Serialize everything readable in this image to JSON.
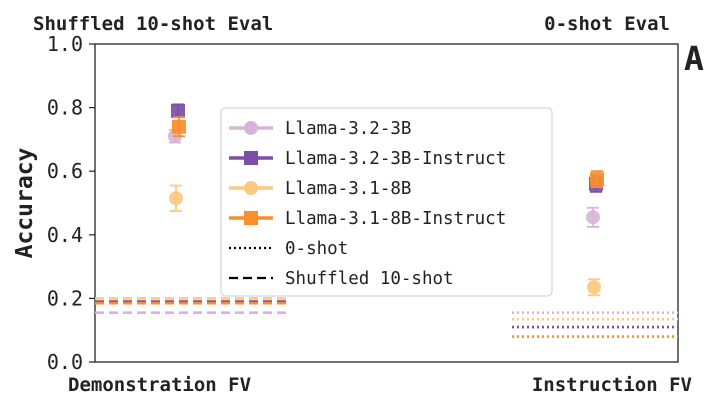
{
  "chart_data": {
    "type": "scatter",
    "panel_label": "A",
    "ylabel": "Accuracy",
    "ylim": [
      0.0,
      1.0
    ],
    "yticks": [
      "0.0",
      "0.2",
      "0.4",
      "0.6",
      "0.8",
      "1.0"
    ],
    "categories": [
      "Demonstration FV",
      "Instruction FV"
    ],
    "column_titles": [
      "Shuffled 10-shot Eval",
      "0-shot Eval"
    ],
    "series": [
      {
        "name": "Llama-3.2-3B",
        "color": "#d7b5d8",
        "marker": "circle",
        "values": [
          0.71,
          0.455
        ],
        "err": [
          0.02,
          0.03
        ],
        "baseline": [
          0.155,
          0.155
        ]
      },
      {
        "name": "Llama-3.2-3B-Instruct",
        "color": "#7b4fa6",
        "marker": "square",
        "values": [
          0.79,
          0.56
        ],
        "err": [
          0.02,
          0.025
        ],
        "baseline": [
          0.19,
          0.11
        ]
      },
      {
        "name": "Llama-3.1-8B",
        "color": "#fdc87f",
        "marker": "circle",
        "values": [
          0.515,
          0.235
        ],
        "err": [
          0.04,
          0.025
        ],
        "baseline": [
          0.2,
          0.135
        ]
      },
      {
        "name": "Llama-3.1-8B-Instruct",
        "color": "#f98e2b",
        "marker": "square",
        "values": [
          0.74,
          0.575
        ],
        "err": [
          0.03,
          0.025
        ],
        "baseline": [
          0.185,
          0.08
        ]
      }
    ],
    "baseline_style": [
      "dashed",
      "dotted"
    ],
    "legend": [
      {
        "label": "Llama-3.2-3B",
        "color": "#d7b5d8",
        "marker": "circle",
        "line": "solid"
      },
      {
        "label": "Llama-3.2-3B-Instruct",
        "color": "#7b4fa6",
        "marker": "square",
        "line": "solid"
      },
      {
        "label": "Llama-3.1-8B",
        "color": "#fdc87f",
        "marker": "circle",
        "line": "solid"
      },
      {
        "label": "Llama-3.1-8B-Instruct",
        "color": "#f98e2b",
        "marker": "square",
        "line": "solid"
      },
      {
        "label": "0-shot",
        "color": "#000000",
        "marker": "none",
        "line": "dotted"
      },
      {
        "label": "Shuffled 10-shot",
        "color": "#000000",
        "marker": "none",
        "line": "dashed"
      }
    ],
    "legend_position": "center",
    "grid": false
  }
}
